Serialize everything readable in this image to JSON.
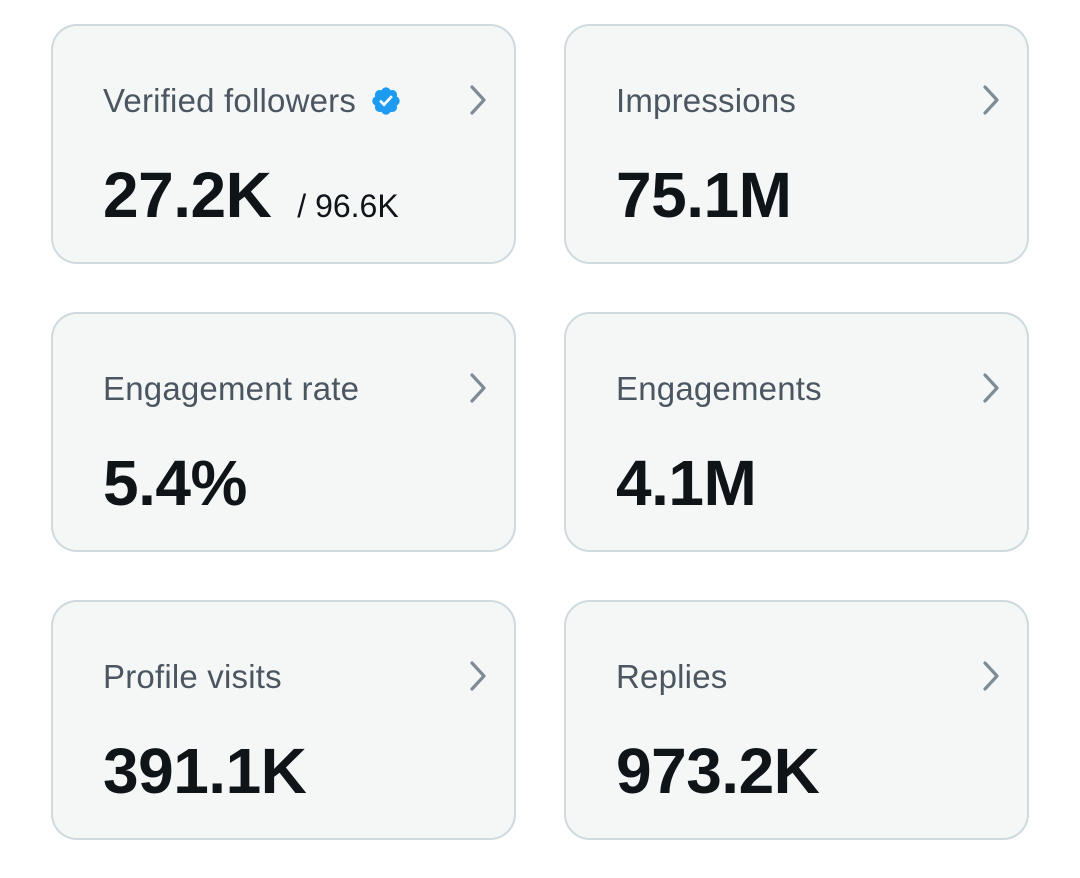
{
  "cards": [
    {
      "title": "Verified followers",
      "value": "27.2K",
      "subvalue": "/ 96.6K",
      "icon": "verified-badge-icon",
      "icon_color": "#1d9bf0"
    },
    {
      "title": "Impressions",
      "value": "75.1M"
    },
    {
      "title": "Engagement rate",
      "value": "5.4%"
    },
    {
      "title": "Engagements",
      "value": "4.1M"
    },
    {
      "title": "Profile visits",
      "value": "391.1K"
    },
    {
      "title": "Replies",
      "value": "973.2K"
    }
  ],
  "chevron_icon": "chevron-right-icon",
  "colors": {
    "card_background": "#f5f7f7",
    "card_border": "#cfd9de",
    "title_text": "#4b5661",
    "value_text": "#0f1419",
    "chevron": "#7d8b96"
  }
}
